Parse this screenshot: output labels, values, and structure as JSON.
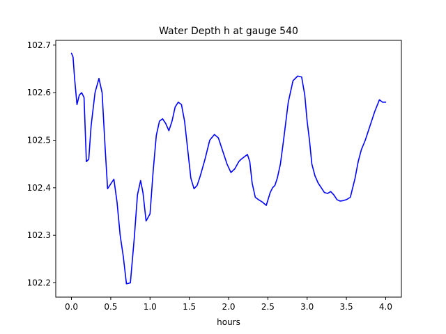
{
  "chart_data": {
    "type": "line",
    "title": "Water Depth h at gauge 540",
    "xlabel": "hours",
    "ylabel": "",
    "xlim": [
      -0.2,
      4.2
    ],
    "ylim": [
      102.17,
      102.71
    ],
    "xticks": [
      0.0,
      0.5,
      1.0,
      1.5,
      2.0,
      2.5,
      3.0,
      3.5,
      4.0
    ],
    "xtick_labels": [
      "0.0",
      "0.5",
      "1.0",
      "1.5",
      "2.0",
      "2.5",
      "3.0",
      "3.5",
      "4.0"
    ],
    "yticks": [
      102.2,
      102.3,
      102.4,
      102.5,
      102.6,
      102.7
    ],
    "ytick_labels": [
      "102.2",
      "102.3",
      "102.4",
      "102.5",
      "102.6",
      "102.7"
    ],
    "grid": false,
    "series": [
      {
        "color": "#0000ff",
        "x": [
          0.0,
          0.02,
          0.04,
          0.07,
          0.1,
          0.13,
          0.16,
          0.19,
          0.22,
          0.25,
          0.3,
          0.35,
          0.39,
          0.43,
          0.46,
          0.5,
          0.54,
          0.58,
          0.62,
          0.66,
          0.7,
          0.75,
          0.8,
          0.84,
          0.88,
          0.91,
          0.95,
          1.0,
          1.04,
          1.08,
          1.12,
          1.16,
          1.2,
          1.24,
          1.28,
          1.32,
          1.36,
          1.4,
          1.44,
          1.48,
          1.52,
          1.56,
          1.6,
          1.64,
          1.7,
          1.76,
          1.82,
          1.87,
          1.93,
          1.98,
          2.03,
          2.08,
          2.13,
          2.16,
          2.2,
          2.24,
          2.27,
          2.3,
          2.34,
          2.38,
          2.43,
          2.48,
          2.53,
          2.56,
          2.59,
          2.62,
          2.66,
          2.7,
          2.76,
          2.82,
          2.88,
          2.93,
          2.97,
          3.0,
          3.03,
          3.06,
          3.1,
          3.14,
          3.18,
          3.22,
          3.26,
          3.3,
          3.34,
          3.38,
          3.42,
          3.46,
          3.5,
          3.55,
          3.61,
          3.65,
          3.69,
          3.74,
          3.8,
          3.86,
          3.92,
          3.96,
          3.98,
          4.0
        ],
        "y": [
          102.683,
          102.675,
          102.63,
          102.575,
          102.595,
          102.6,
          102.59,
          102.455,
          102.46,
          102.53,
          102.6,
          102.63,
          102.6,
          102.48,
          102.398,
          102.408,
          102.418,
          102.37,
          102.3,
          102.255,
          102.198,
          102.2,
          102.295,
          102.385,
          102.415,
          102.39,
          102.33,
          102.345,
          102.435,
          102.51,
          102.54,
          102.545,
          102.535,
          102.52,
          102.54,
          102.57,
          102.58,
          102.575,
          102.54,
          102.48,
          102.42,
          102.398,
          102.405,
          102.425,
          102.46,
          102.5,
          102.512,
          102.505,
          102.475,
          102.45,
          102.432,
          102.44,
          102.455,
          102.46,
          102.465,
          102.47,
          102.455,
          102.41,
          102.38,
          102.375,
          102.37,
          102.363,
          102.39,
          102.4,
          102.405,
          102.42,
          102.45,
          102.5,
          102.58,
          102.625,
          102.635,
          102.633,
          102.595,
          102.54,
          102.5,
          102.45,
          102.425,
          102.41,
          102.4,
          102.39,
          102.388,
          102.392,
          102.385,
          102.375,
          102.372,
          102.373,
          102.375,
          102.38,
          102.42,
          102.455,
          102.48,
          102.5,
          102.53,
          102.56,
          102.585,
          102.58,
          102.58,
          102.58
        ]
      }
    ]
  }
}
